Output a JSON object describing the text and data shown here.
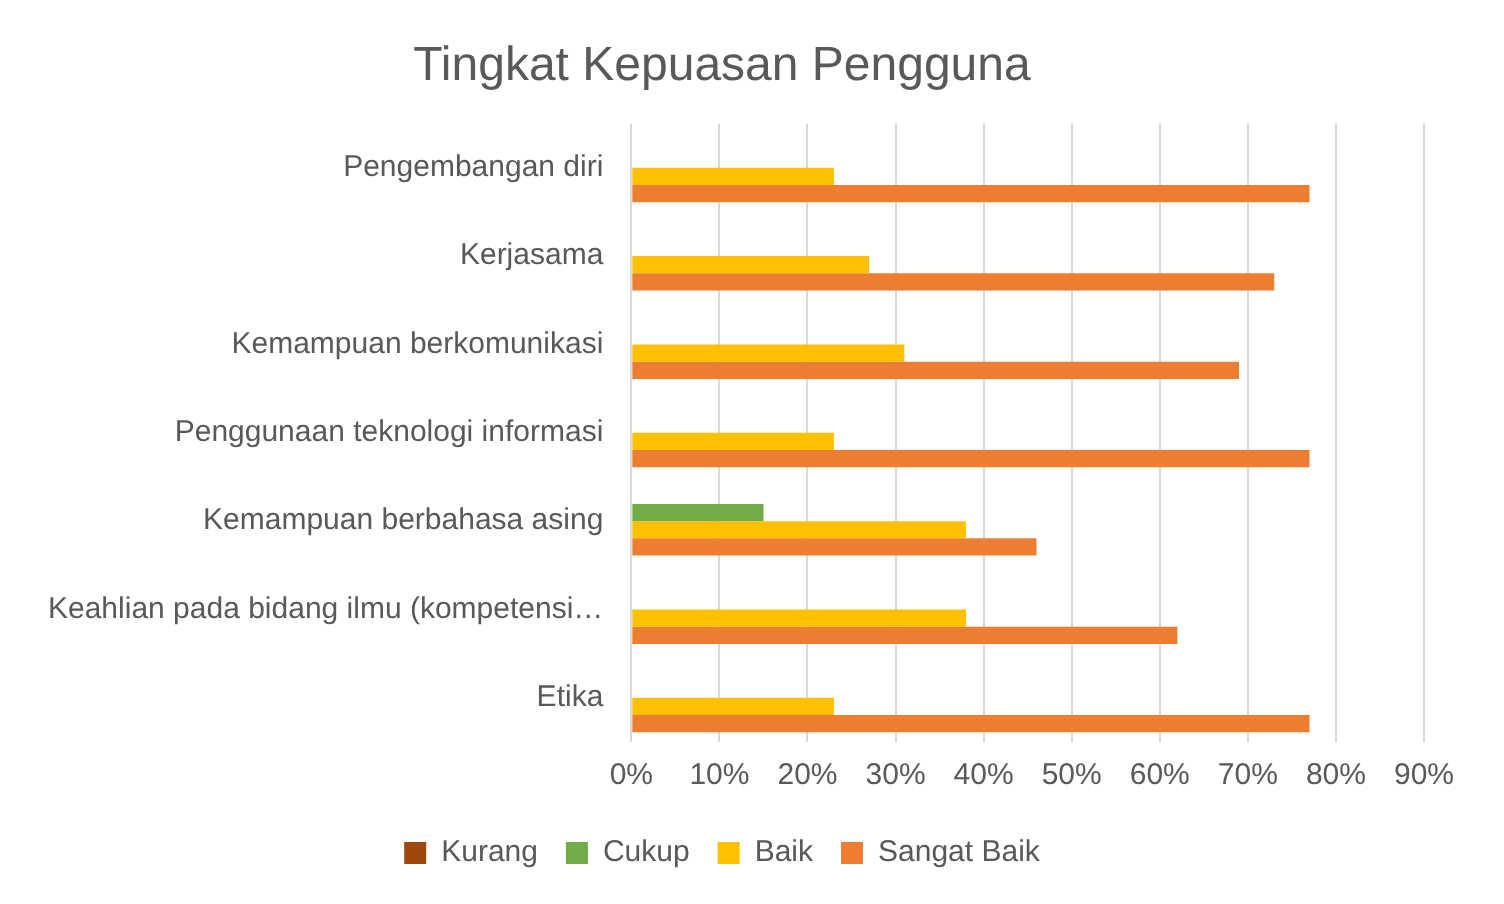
{
  "chart_data": {
    "type": "bar",
    "orientation": "horizontal",
    "title": "Tingkat Kepuasan Pengguna",
    "categories": [
      "Pengembangan diri",
      "Kerjasama",
      "Kemampuan berkomunikasi",
      "Penggunaan teknologi informasi",
      "Kemampuan berbahasa asing",
      "Keahlian pada bidang ilmu (kompetensi…",
      "Etika"
    ],
    "series": [
      {
        "name": "Kurang",
        "color": "#9e480e",
        "values": [
          0,
          0,
          0,
          0,
          0,
          0,
          0
        ]
      },
      {
        "name": "Cukup",
        "color": "#70ad47",
        "values": [
          0,
          0,
          0,
          0,
          15,
          0,
          0
        ]
      },
      {
        "name": "Baik",
        "color": "#ffc000",
        "values": [
          23,
          27,
          31,
          23,
          38,
          38,
          23
        ]
      },
      {
        "name": "Sangat Baik",
        "color": "#ed7d31",
        "values": [
          77,
          73,
          69,
          77,
          46,
          62,
          77
        ]
      }
    ],
    "xlim": [
      0,
      90
    ],
    "xticks": [
      {
        "value": 0,
        "label": "0%"
      },
      {
        "value": 10,
        "label": "10%"
      },
      {
        "value": 20,
        "label": "20%"
      },
      {
        "value": 30,
        "label": "30%"
      },
      {
        "value": 40,
        "label": "40%"
      },
      {
        "value": 50,
        "label": "50%"
      },
      {
        "value": 60,
        "label": "60%"
      },
      {
        "value": 70,
        "label": "70%"
      },
      {
        "value": 80,
        "label": "80%"
      },
      {
        "value": 90,
        "label": "90%"
      }
    ],
    "grid": "x",
    "legend": "bottom"
  }
}
